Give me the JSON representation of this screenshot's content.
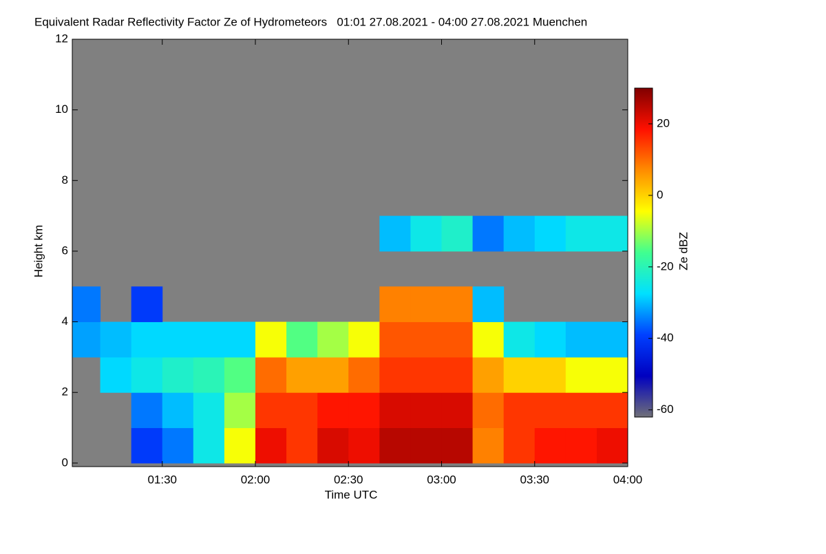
{
  "chart_data": {
    "type": "heatmap",
    "title": "Equivalent Radar Reflectivity Factor Ze of Hydrometeors   01:01 27.08.2021 - 04:00 27.08.2021 Muenchen",
    "x_label": "Time UTC",
    "y_label": "Height km",
    "colorbar_label": "Ze dBZ",
    "x": [
      61,
      70,
      80,
      90,
      100,
      110,
      120,
      130,
      140,
      150,
      160,
      170,
      180,
      190,
      200,
      210,
      220,
      230,
      240
    ],
    "y": [
      0,
      1,
      2,
      3,
      4,
      5,
      6,
      7
    ],
    "z": [
      [
        null,
        null,
        -40,
        -35,
        -25,
        -5,
        20,
        15,
        22,
        20,
        25,
        25,
        25,
        8,
        15,
        18,
        18,
        20
      ],
      [
        null,
        null,
        -35,
        -30,
        -25,
        -10,
        15,
        15,
        18,
        18,
        22,
        22,
        22,
        10,
        15,
        15,
        15,
        15
      ],
      [
        null,
        -28,
        -25,
        -22,
        -20,
        -15,
        10,
        5,
        5,
        10,
        15,
        15,
        15,
        5,
        0,
        0,
        -5,
        -5
      ],
      [
        -32,
        -30,
        -28,
        -28,
        -28,
        -28,
        -5,
        -15,
        -10,
        -5,
        12,
        12,
        12,
        -5,
        -25,
        -28,
        -30,
        -30
      ],
      [
        -35,
        null,
        -40,
        null,
        null,
        null,
        null,
        null,
        null,
        null,
        8,
        8,
        8,
        -30,
        null,
        null,
        null,
        null
      ],
      [
        null,
        null,
        null,
        null,
        null,
        null,
        null,
        null,
        null,
        null,
        null,
        null,
        null,
        null,
        null,
        null,
        null,
        null
      ],
      [
        null,
        null,
        null,
        null,
        null,
        null,
        null,
        null,
        null,
        null,
        -30,
        -25,
        -22,
        -35,
        -30,
        -28,
        -25,
        -25
      ]
    ],
    "xlim": [
      61,
      240
    ],
    "xticks": [
      {
        "value": 90,
        "label": "01:30"
      },
      {
        "value": 120,
        "label": "02:00"
      },
      {
        "value": 150,
        "label": "02:30"
      },
      {
        "value": 180,
        "label": "03:00"
      },
      {
        "value": 210,
        "label": "03:30"
      },
      {
        "value": 240,
        "label": "04:00"
      }
    ],
    "ylim": [
      -0.1,
      12
    ],
    "yticks": [
      0,
      2,
      4,
      6,
      8,
      10,
      12
    ],
    "zlim": [
      -62,
      30
    ],
    "zticks": [
      -60,
      -40,
      -20,
      0,
      20
    ],
    "colors": [
      "#707078",
      "#0000c0",
      "#0040ff",
      "#00e0ff",
      "#40ff90",
      "#ffff00",
      "#ff8c00",
      "#ff1000",
      "#800000"
    ],
    "background": "#808080"
  }
}
